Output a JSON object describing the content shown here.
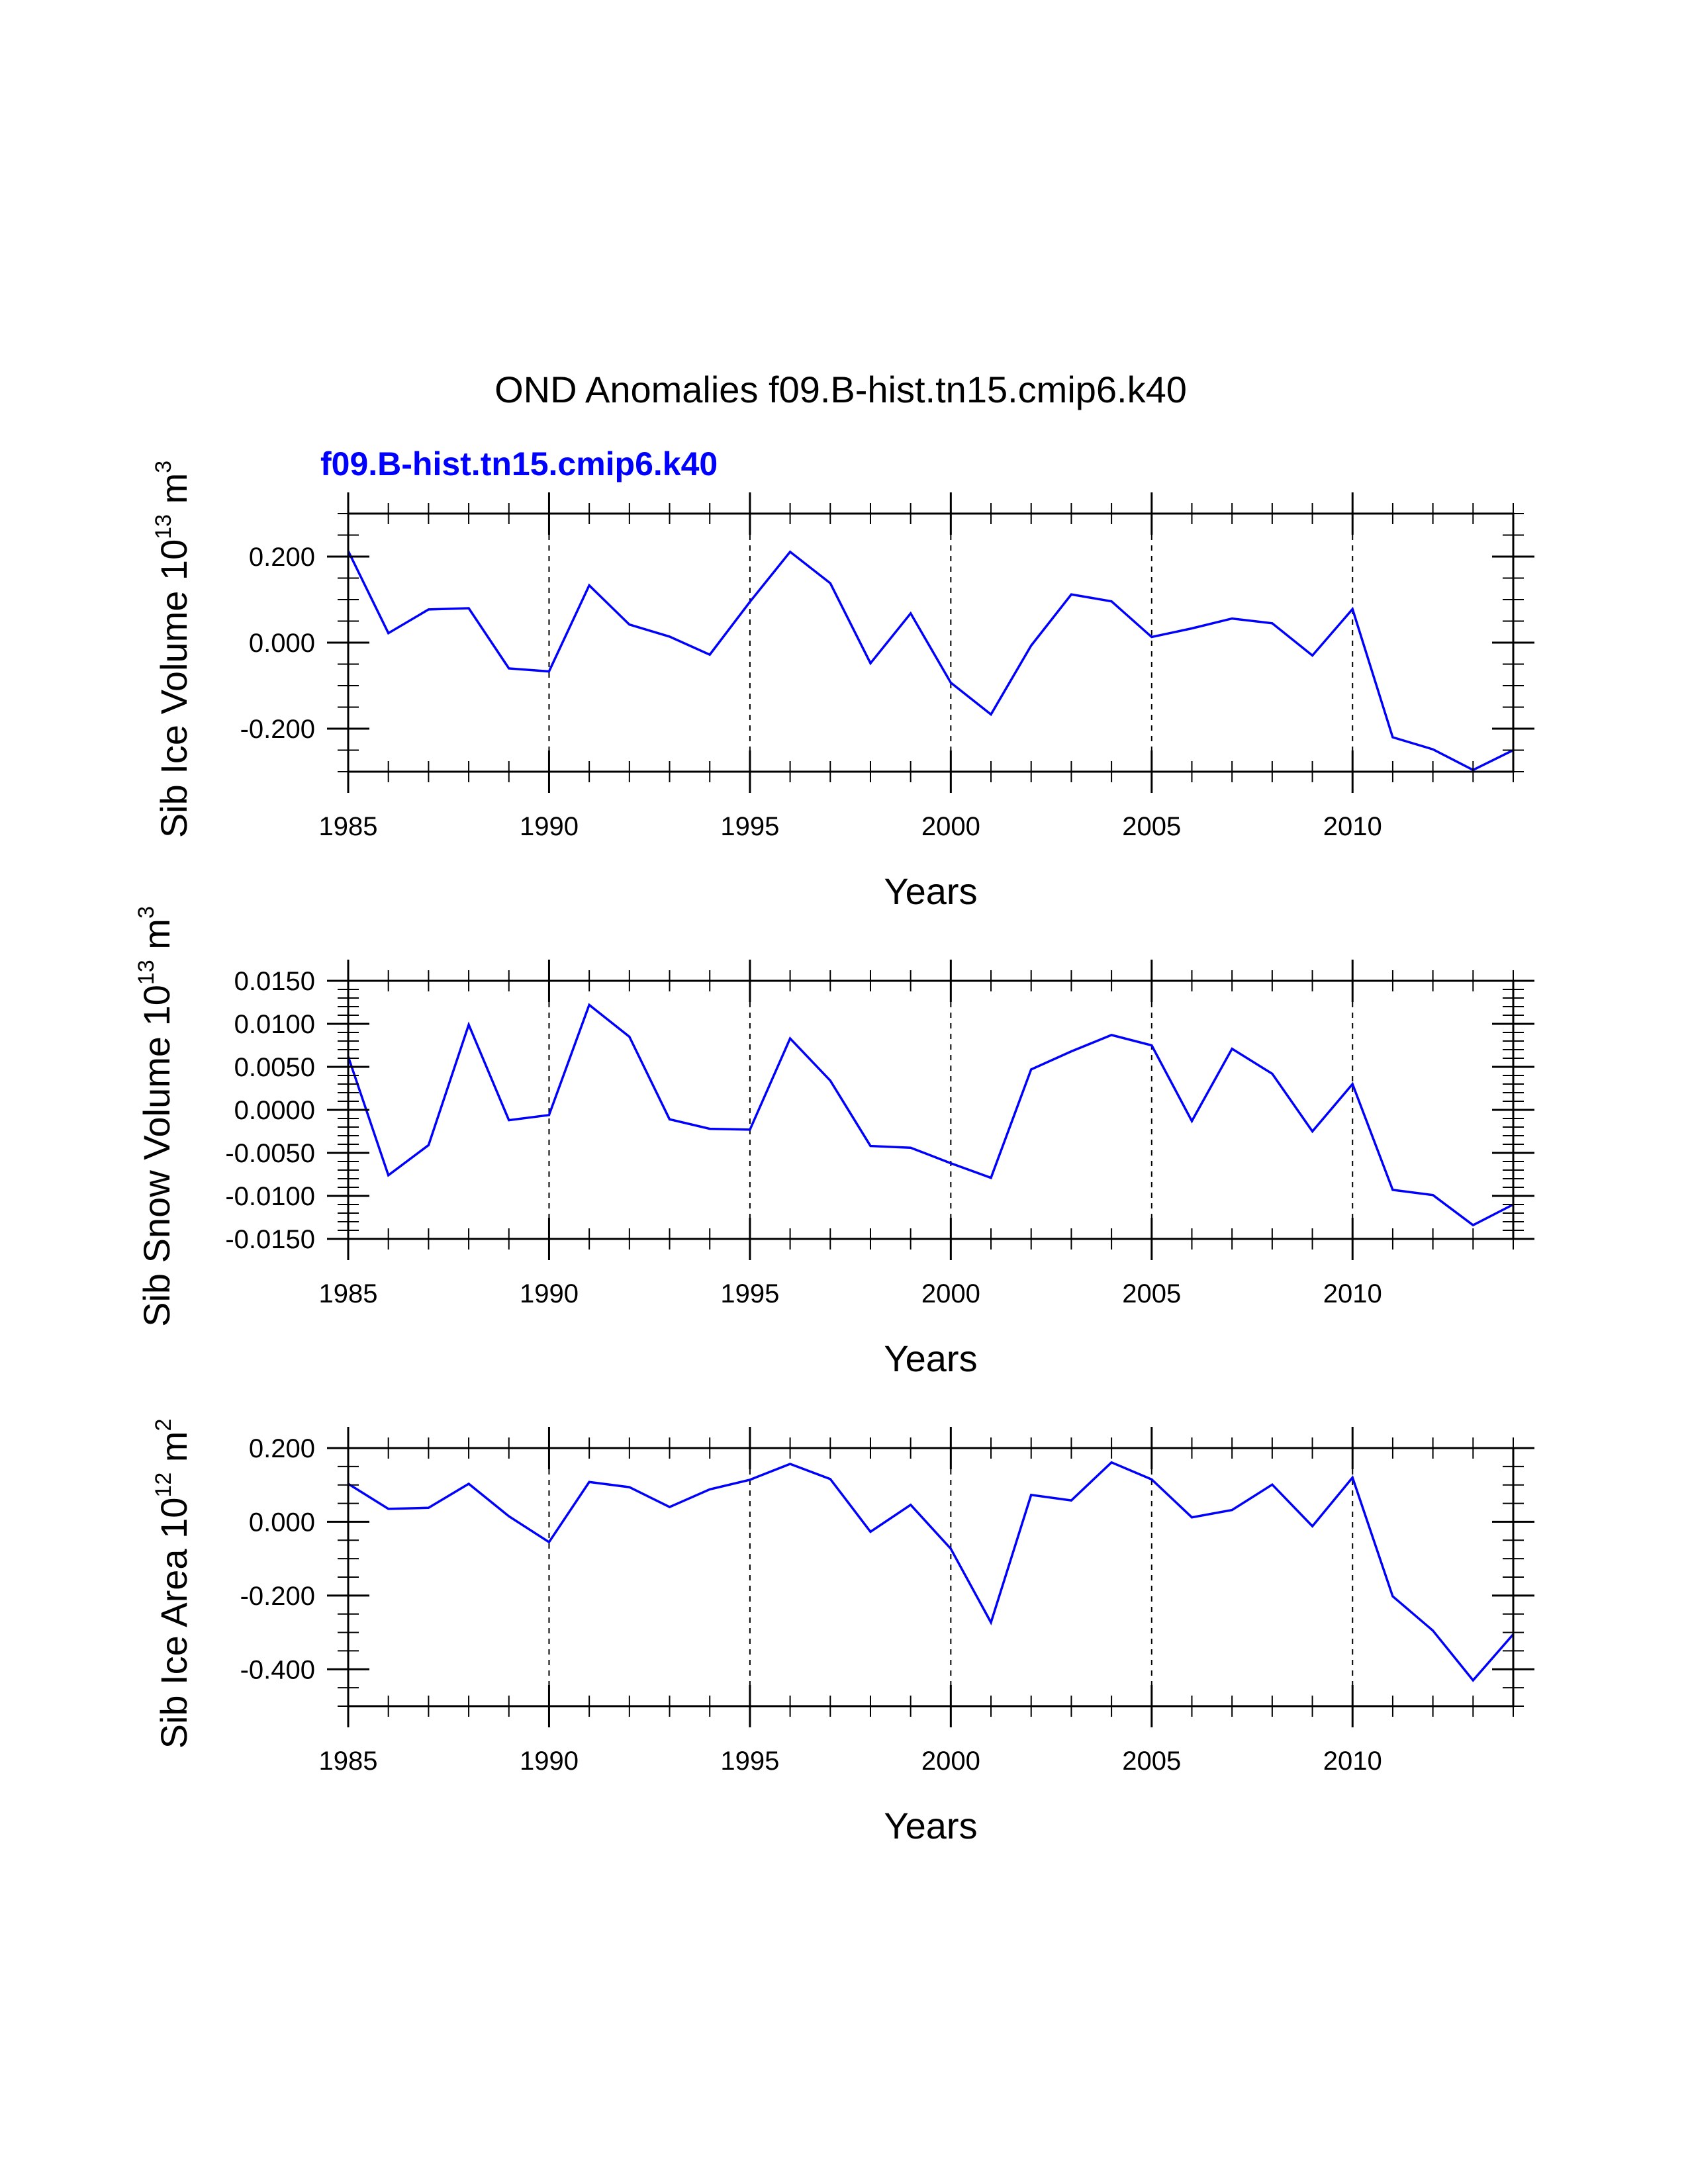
{
  "colors": {
    "series": "#0000ff",
    "axis": "#000000",
    "background": "#ffffff"
  },
  "figure_title": "OND Anomalies f09.B-hist.tn15.cmip6.k40",
  "subtitle": "f09.B-hist.tn15.cmip6.k40",
  "chart_data": [
    {
      "type": "line",
      "ylabel": {
        "text": "Sib Ice Volume 10",
        "exp": "13",
        "unit": "m",
        "unit_exp": "3"
      },
      "xlabel": "Years",
      "xlim": [
        1985,
        2014
      ],
      "ylim": [
        -0.3,
        0.3
      ],
      "xticks": [
        1985,
        1990,
        1995,
        2000,
        2005,
        2010
      ],
      "yticks": [
        -0.2,
        0.0,
        0.2
      ],
      "ytick_labels": [
        "-0.200",
        "0.000",
        "0.200"
      ],
      "y_minor_step": 0.05,
      "vlines": [
        1990,
        1995,
        2000,
        2005,
        2010
      ],
      "series": [
        {
          "name": "f09.B-hist.tn15.cmip6.k40",
          "x": [
            1985,
            1986,
            1987,
            1988,
            1989,
            1990,
            1991,
            1992,
            1993,
            1994,
            1995,
            1996,
            1997,
            1998,
            1999,
            2000,
            2001,
            2002,
            2003,
            2004,
            2005,
            2006,
            2007,
            2008,
            2009,
            2010,
            2011,
            2012,
            2013,
            2014
          ],
          "values": [
            0.213,
            0.022,
            0.077,
            0.08,
            -0.06,
            -0.067,
            0.133,
            0.042,
            0.014,
            -0.028,
            0.095,
            0.211,
            0.138,
            -0.048,
            0.068,
            -0.093,
            -0.167,
            -0.007,
            0.112,
            0.096,
            0.013,
            0.033,
            0.056,
            0.045,
            -0.03,
            0.078,
            -0.22,
            -0.248,
            -0.296,
            -0.25
          ]
        }
      ]
    },
    {
      "type": "line",
      "ylabel": {
        "text": "Sib Snow Volume 10",
        "exp": "13",
        "unit": "m",
        "unit_exp": "3"
      },
      "xlabel": "Years",
      "xlim": [
        1985,
        2014
      ],
      "ylim": [
        -0.015,
        0.015
      ],
      "xticks": [
        1985,
        1990,
        1995,
        2000,
        2005,
        2010
      ],
      "yticks": [
        -0.015,
        -0.01,
        -0.005,
        0.0,
        0.005,
        0.01,
        0.015
      ],
      "ytick_labels": [
        "-0.0150",
        "-0.0100",
        "-0.0050",
        "0.0000",
        "0.0050",
        "0.0100",
        "0.0150"
      ],
      "y_minor_step": 0.001,
      "vlines": [
        1990,
        1995,
        2000,
        2005,
        2010
      ],
      "series": [
        {
          "name": "f09.B-hist.tn15.cmip6.k40",
          "x": [
            1985,
            1986,
            1987,
            1988,
            1989,
            1990,
            1991,
            1992,
            1993,
            1994,
            1995,
            1996,
            1997,
            1998,
            1999,
            2000,
            2001,
            2002,
            2003,
            2004,
            2005,
            2006,
            2007,
            2008,
            2009,
            2010,
            2011,
            2012,
            2013,
            2014
          ],
          "values": [
            0.0062,
            -0.0076,
            -0.0041,
            0.0099,
            -0.0012,
            -0.0006,
            0.0122,
            0.0085,
            -0.0011,
            -0.0022,
            -0.0023,
            0.0083,
            0.0034,
            -0.0042,
            -0.0044,
            -0.0062,
            -0.0079,
            0.0047,
            0.0068,
            0.0087,
            0.0075,
            -0.0013,
            0.0071,
            0.0042,
            -0.0025,
            0.003,
            -0.0093,
            -0.0099,
            -0.0134,
            -0.011
          ]
        }
      ]
    },
    {
      "type": "line",
      "ylabel": {
        "text": "Sib Ice Area 10",
        "exp": "12",
        "unit": "m",
        "unit_exp": "2"
      },
      "xlabel": "Years",
      "xlim": [
        1985,
        2014
      ],
      "ylim": [
        -0.5,
        0.2
      ],
      "xticks": [
        1985,
        1990,
        1995,
        2000,
        2005,
        2010
      ],
      "yticks": [
        -0.4,
        -0.2,
        0.0,
        0.2
      ],
      "ytick_labels": [
        "-0.400",
        "-0.200",
        "0.000",
        "0.200"
      ],
      "y_minor_step": 0.05,
      "vlines": [
        1990,
        1995,
        2000,
        2005,
        2010
      ],
      "series": [
        {
          "name": "f09.B-hist.tn15.cmip6.k40",
          "x": [
            1985,
            1986,
            1987,
            1988,
            1989,
            1990,
            1991,
            1992,
            1993,
            1994,
            1995,
            1996,
            1997,
            1998,
            1999,
            2000,
            2001,
            2002,
            2003,
            2004,
            2005,
            2006,
            2007,
            2008,
            2009,
            2010,
            2011,
            2012,
            2013,
            2014
          ],
          "values": [
            0.103,
            0.035,
            0.038,
            0.103,
            0.015,
            -0.055,
            0.108,
            0.094,
            0.04,
            0.088,
            0.114,
            0.157,
            0.116,
            -0.027,
            0.046,
            -0.073,
            -0.273,
            0.073,
            0.058,
            0.161,
            0.115,
            0.012,
            0.032,
            0.101,
            -0.012,
            0.12,
            -0.202,
            -0.295,
            -0.43,
            -0.305
          ]
        }
      ]
    }
  ]
}
